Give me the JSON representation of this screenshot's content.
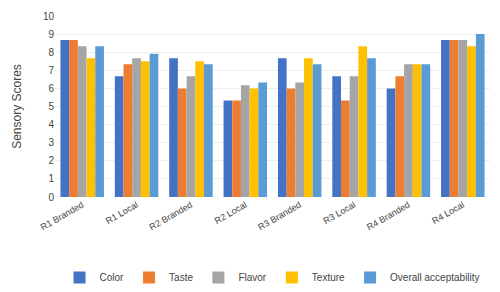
{
  "chart_data": {
    "type": "bar",
    "ylabel": "Sensory Scores",
    "categories": [
      "R1 Branded",
      "R1 Local",
      "R2 Branded",
      "R2 Local",
      "R3 Branded",
      "R3 Local",
      "R4 Branded",
      "R4 Local"
    ],
    "series": [
      {
        "name": "Color",
        "color": "#4472C4",
        "values": [
          8.67,
          6.67,
          7.67,
          5.33,
          7.67,
          6.67,
          6.0,
          8.67
        ]
      },
      {
        "name": "Taste",
        "color": "#ED7D31",
        "values": [
          8.67,
          7.33,
          6.0,
          5.33,
          6.0,
          5.33,
          6.67,
          8.67
        ]
      },
      {
        "name": "Flavor",
        "color": "#A5A5A5",
        "values": [
          8.33,
          7.67,
          6.67,
          6.17,
          6.33,
          6.67,
          7.33,
          8.67
        ]
      },
      {
        "name": "Texture",
        "color": "#FFC000",
        "values": [
          7.67,
          7.5,
          7.5,
          6.0,
          7.67,
          8.33,
          7.33,
          8.33
        ]
      },
      {
        "name": "Overall acceptability",
        "color": "#5B9BD5",
        "values": [
          8.33,
          7.92,
          7.33,
          6.33,
          7.33,
          7.67,
          7.33,
          9.0
        ]
      }
    ],
    "ylim": [
      0,
      10
    ],
    "yticks": [
      0,
      1,
      2,
      3,
      4,
      5,
      6,
      7,
      8,
      9,
      10
    ],
    "grid": true,
    "legend": "bottom"
  }
}
